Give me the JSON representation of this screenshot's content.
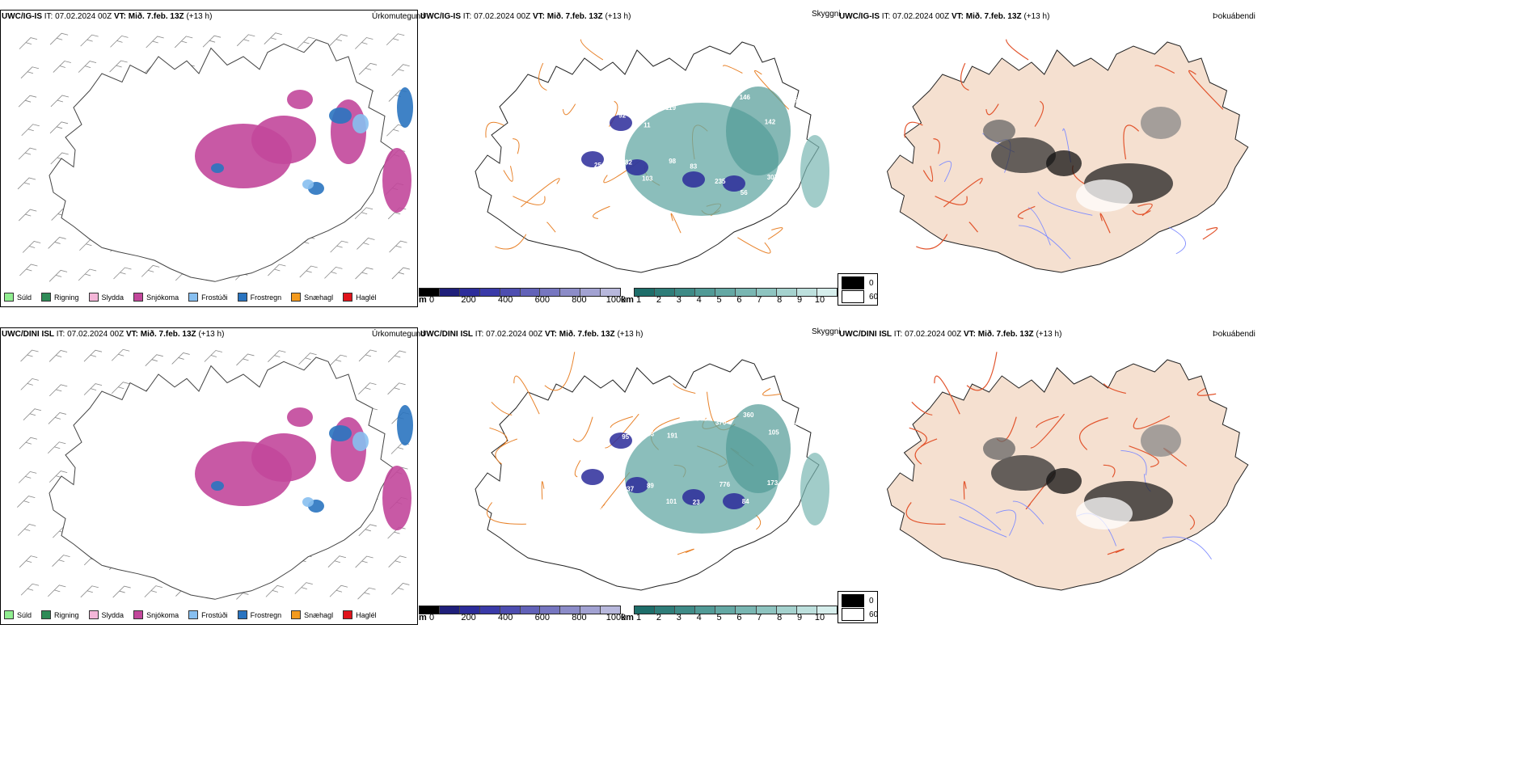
{
  "rows": [
    {
      "model": "UWC/IG-IS",
      "it_label": "IT:",
      "it_value": "07.02.2024 00Z",
      "vt_label": "VT:",
      "vt_value": "Mið. 7.feb. 13Z",
      "lead": "(+13 h)",
      "titles": {
        "precip": "Úrkomutegund",
        "visibility": "Skyggni",
        "fog": "Þokuábendi"
      }
    },
    {
      "model": "UWC/DINI ISL",
      "it_label": "IT:",
      "it_value": "07.02.2024 00Z",
      "vt_label": "VT:",
      "vt_value": "Mið. 7.feb. 13Z",
      "lead": "(+13 h)",
      "titles": {
        "precip": "Úrkomutegund",
        "visibility": "Skyggni",
        "fog": "Þokuábendi"
      }
    }
  ],
  "precip_legend": [
    {
      "label": "Súld",
      "color": "#90ee90"
    },
    {
      "label": "Rigning",
      "color": "#2e8b57"
    },
    {
      "label": "Slydda",
      "color": "#f4b6d8"
    },
    {
      "label": "Snjókoma",
      "color": "#c2479b"
    },
    {
      "label": "Frostúði",
      "color": "#87bff0"
    },
    {
      "label": "Frostregn",
      "color": "#2a74c0"
    },
    {
      "label": "Snæhagl",
      "color": "#f39a1e"
    },
    {
      "label": "Haglél",
      "color": "#e0141c"
    }
  ],
  "height_bar": {
    "unit": "m",
    "ticks": [
      "0",
      "200",
      "400",
      "600",
      "800",
      "1000"
    ],
    "colors": [
      "#000000",
      "#1f1f7a",
      "#2c2c9a",
      "#3a3aa8",
      "#4d4db0",
      "#6262b8",
      "#7676c0",
      "#8c8cc8",
      "#a2a2d2",
      "#b8b8dc"
    ]
  },
  "vis_bar": {
    "unit": "km",
    "ticks": [
      "1",
      "2",
      "3",
      "4",
      "5",
      "6",
      "7",
      "8",
      "9",
      "10"
    ],
    "colors": [
      "#1e6e6a",
      "#2f7d79",
      "#3f8b87",
      "#519a96",
      "#64a8a4",
      "#79b6b2",
      "#8ec4c0",
      "#a5d2ce",
      "#bde0dd",
      "#d6eeec"
    ]
  },
  "fog_legend": [
    {
      "label": "0",
      "color": "#000000"
    },
    {
      "label": "60",
      "color": "#ffffff"
    }
  ],
  "vis_labels": [
    [
      "81",
      "92",
      "11",
      "119",
      "240",
      "556",
      "146",
      "142",
      "65",
      "254",
      "182",
      "103",
      "98",
      "83",
      "235",
      "56",
      "307"
    ],
    [
      "82",
      "95",
      "93",
      "191",
      "341",
      "370",
      "360",
      "105",
      "98",
      "521",
      "837",
      "89",
      "101",
      "23",
      "776",
      "84",
      "173"
    ]
  ],
  "colors": {
    "snow": "#c2479b",
    "freezing_rain": "#2a74c0",
    "freezing_drizzle": "#87bff0",
    "roads": "#e8822a",
    "land_fog": "#f5e0d0",
    "rivers": "#7f8cff",
    "road_red": "#e2552e"
  }
}
